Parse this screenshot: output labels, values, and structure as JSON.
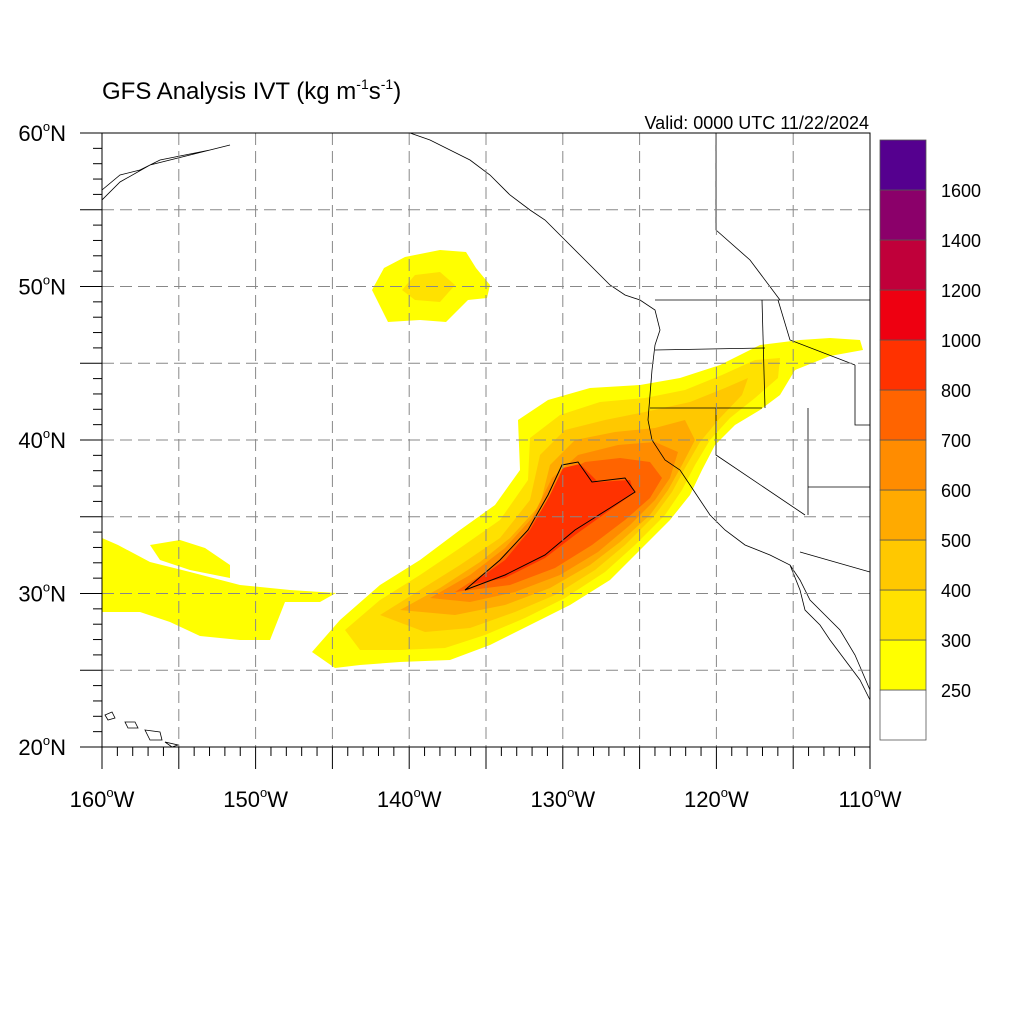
{
  "title": {
    "main": "GFS Analysis IVT (kg m",
    "exp1": "-1",
    "mid": "s",
    "exp2": "-1",
    "close": ")"
  },
  "valid_label": "Valid: 0000 UTC 11/22/2024",
  "map": {
    "lon_range": [
      -160,
      -110
    ],
    "lat_range": [
      20,
      60
    ],
    "lon_labels": [
      {
        "lon": -160,
        "num": "160",
        "hemi": "W"
      },
      {
        "lon": -150,
        "num": "150",
        "hemi": "W"
      },
      {
        "lon": -140,
        "num": "140",
        "hemi": "W"
      },
      {
        "lon": -130,
        "num": "130",
        "hemi": "W"
      },
      {
        "lon": -120,
        "num": "120",
        "hemi": "W"
      },
      {
        "lon": -110,
        "num": "110",
        "hemi": "W"
      }
    ],
    "lat_labels": [
      {
        "lat": 60,
        "num": "60",
        "hemi": "N"
      },
      {
        "lat": 50,
        "num": "50",
        "hemi": "N"
      },
      {
        "lat": 40,
        "num": "40",
        "hemi": "N"
      },
      {
        "lat": 30,
        "num": "30",
        "hemi": "N"
      },
      {
        "lat": 20,
        "num": "20",
        "hemi": "N"
      }
    ],
    "grid_lon_step": 5,
    "grid_lat_step": 5,
    "grid": true
  },
  "legend": {
    "levels": [
      "250",
      "300",
      "400",
      "500",
      "600",
      "700",
      "800",
      "1000",
      "1200",
      "1400",
      "1600"
    ],
    "colors": [
      "#ffffff",
      "#ffff00",
      "#ffe100",
      "#ffc800",
      "#ffaa00",
      "#ff8c00",
      "#ff6400",
      "#ff3200",
      "#ee0011",
      "#c0003a",
      "#8b006a",
      "#55008f"
    ]
  },
  "colors": {
    "ivt_250": "#ffff00",
    "ivt_300": "#ffe100",
    "ivt_400": "#ffc800",
    "ivt_500": "#ffaa00",
    "ivt_600": "#ff8c00",
    "ivt_700": "#ff6400",
    "ivt_800": "#ff3200",
    "coast": "#000000",
    "grid": "#888888"
  }
}
